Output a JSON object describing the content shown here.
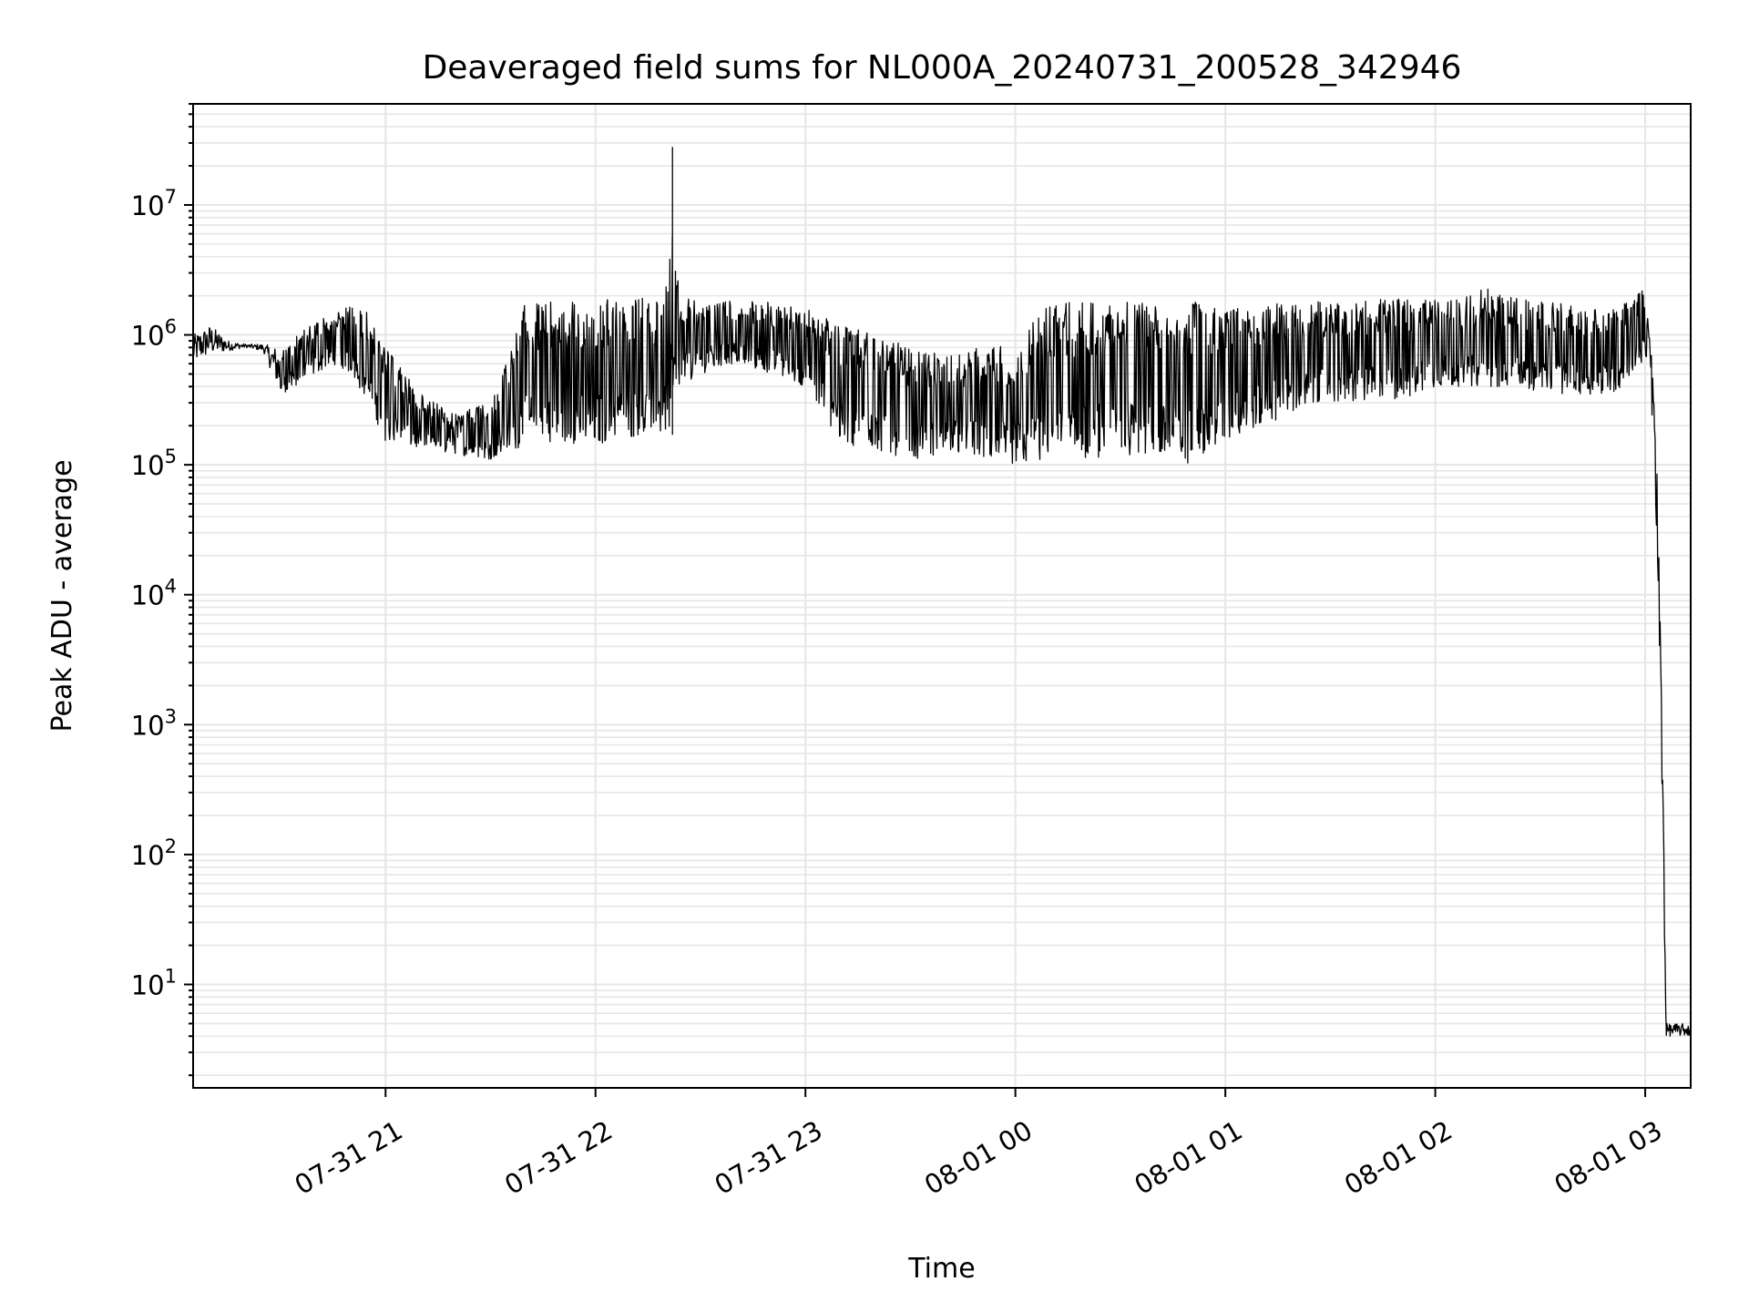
{
  "chart_data": {
    "type": "line",
    "title": "Deaveraged field sums for NL000A_20240731_200528_342946",
    "xlabel": "Time",
    "ylabel": "Peak ADU - average",
    "y_scale": "log",
    "ylim": [
      1.6,
      60000000
    ],
    "xlim": [
      "2024-07-31 20:05",
      "2024-08-01 03:13"
    ],
    "grid": true,
    "grid_color": "#e6e6e6",
    "line_color": "#000000",
    "x_ticks": [
      "07-31 21",
      "07-31 22",
      "07-31 23",
      "08-01 00",
      "08-01 01",
      "08-01 02",
      "08-01 03"
    ],
    "x_tick_values": [
      "2024-07-31 21:00",
      "2024-07-31 22:00",
      "2024-07-31 23:00",
      "2024-08-01 00:00",
      "2024-08-01 01:00",
      "2024-08-01 02:00",
      "2024-08-01 03:00"
    ],
    "y_ticks": [
      {
        "base": "10",
        "exp": "1",
        "value": 10
      },
      {
        "base": "10",
        "exp": "2",
        "value": 100
      },
      {
        "base": "10",
        "exp": "3",
        "value": 1000
      },
      {
        "base": "10",
        "exp": "4",
        "value": 10000
      },
      {
        "base": "10",
        "exp": "5",
        "value": 100000
      },
      {
        "base": "10",
        "exp": "6",
        "value": 1000000
      },
      {
        "base": "10",
        "exp": "7",
        "value": 10000000
      }
    ],
    "series": [
      {
        "x": [
          "2024-07-31 20:05",
          "2024-07-31 20:10",
          "2024-07-31 20:15",
          "2024-07-31 20:20",
          "2024-07-31 20:25",
          "2024-07-31 20:30",
          "2024-07-31 20:35",
          "2024-07-31 20:40",
          "2024-07-31 20:45",
          "2024-07-31 20:50",
          "2024-07-31 20:55",
          "2024-07-31 21:00",
          "2024-07-31 21:10",
          "2024-07-31 21:20",
          "2024-07-31 21:30",
          "2024-07-31 21:40",
          "2024-07-31 21:50",
          "2024-07-31 22:00",
          "2024-07-31 22:10",
          "2024-07-31 22:20",
          "2024-07-31 22:22",
          "2024-07-31 22:24",
          "2024-07-31 22:30",
          "2024-07-31 22:40",
          "2024-07-31 22:50",
          "2024-07-31 23:00",
          "2024-07-31 23:10",
          "2024-07-31 23:20",
          "2024-07-31 23:30",
          "2024-07-31 23:40",
          "2024-07-31 23:50",
          "2024-08-01 00:00",
          "2024-08-01 00:10",
          "2024-08-01 00:20",
          "2024-08-01 00:30",
          "2024-08-01 00:40",
          "2024-08-01 00:50",
          "2024-08-01 01:00",
          "2024-08-01 01:10",
          "2024-08-01 01:20",
          "2024-08-01 01:30",
          "2024-08-01 01:40",
          "2024-08-01 01:50",
          "2024-08-01 02:00",
          "2024-08-01 02:10",
          "2024-08-01 02:15",
          "2024-08-01 02:20",
          "2024-08-01 02:30",
          "2024-08-01 02:40",
          "2024-08-01 02:50",
          "2024-08-01 02:55",
          "2024-08-01 03:00",
          "2024-08-01 03:01",
          "2024-08-01 03:02",
          "2024-08-01 03:03",
          "2024-08-01 03:04",
          "2024-08-01 03:05",
          "2024-08-01 03:06",
          "2024-08-01 03:08",
          "2024-08-01 03:10",
          "2024-08-01 03:13"
        ],
        "low": [
          600000,
          700000,
          750000,
          800000,
          750000,
          350000,
          400000,
          500000,
          600000,
          500000,
          300000,
          150000,
          130000,
          120000,
          110000,
          140000,
          150000,
          140000,
          160000,
          170000,
          170000,
          400000,
          500000,
          600000,
          500000,
          400000,
          150000,
          120000,
          110000,
          120000,
          110000,
          100000,
          100000,
          110000,
          120000,
          110000,
          100000,
          150000,
          200000,
          250000,
          300000,
          300000,
          300000,
          400000,
          400000,
          400000,
          400000,
          350000,
          350000,
          350000,
          400000,
          600000,
          500000,
          200000,
          50000,
          5000,
          100,
          4,
          4,
          4,
          4
        ],
        "high": [
          1000000,
          1200000,
          900000,
          850000,
          850000,
          800000,
          1000000,
          1300000,
          1500000,
          1700000,
          1500000,
          800000,
          350000,
          250000,
          300000,
          1800000,
          1800000,
          1900000,
          1900000,
          2000000,
          28000000,
          2000000,
          1900000,
          1900000,
          1800000,
          1600000,
          1200000,
          1000000,
          800000,
          700000,
          800000,
          900000,
          1800000,
          1800000,
          1800000,
          1800000,
          1800000,
          1700000,
          1800000,
          1800000,
          1800000,
          1900000,
          1900000,
          1900000,
          2000000,
          2400000,
          2000000,
          1800000,
          1700000,
          1600000,
          1800000,
          2400000,
          1200000,
          600000,
          200000,
          20000,
          500,
          5,
          5,
          5,
          5
        ]
      }
    ]
  }
}
